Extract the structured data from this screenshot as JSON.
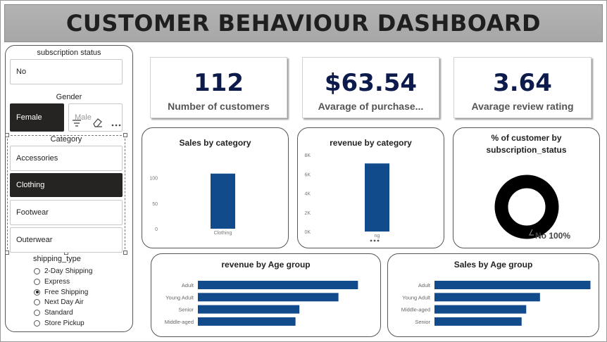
{
  "header": {
    "title": "CUSTOMER BEHAVIOUR DASHBOARD"
  },
  "slicers": {
    "subscription": {
      "title": "subscription status",
      "options": [
        "No"
      ]
    },
    "gender": {
      "title": "Gender",
      "options": [
        "Female",
        "Male"
      ],
      "selected": "Female"
    },
    "category": {
      "title": "Category",
      "options": [
        "Accessories",
        "Clothing",
        "Footwear",
        "Outerwear"
      ],
      "selected": "Clothing"
    },
    "shipping": {
      "title": "shipping_type",
      "options": [
        "2-Day Shipping",
        "Express",
        "Free Shipping",
        "Next Day Air",
        "Standard",
        "Store Pickup"
      ],
      "selected": "Free Shipping"
    }
  },
  "kpis": {
    "customers": {
      "value": "112",
      "label": "Number of customers"
    },
    "purchase": {
      "value": "$63.54",
      "label": "Avarage of purchase..."
    },
    "rating": {
      "value": "3.64",
      "label": "Avarage review rating"
    }
  },
  "colors": {
    "bar": "#124b8c",
    "donut": "#000000",
    "title_bg": "#acacac"
  },
  "icons": [
    "filter-icon",
    "eraser-icon",
    "more-options-icon"
  ],
  "chart_data": [
    {
      "id": "sales_by_category",
      "type": "bar",
      "title": "Sales by category",
      "categories": [
        "Clothing"
      ],
      "values": [
        108
      ],
      "yticks": [
        "0",
        "50",
        "100"
      ],
      "ylim": [
        0,
        120
      ]
    },
    {
      "id": "revenue_by_category",
      "type": "bar",
      "title": "revenue by category",
      "categories": [
        "Clothing"
      ],
      "category_label_visible": "ng",
      "values": [
        7100
      ],
      "yticks": [
        "0K",
        "2K",
        "4K",
        "6K",
        "8K"
      ],
      "ylim": [
        0,
        8000
      ]
    },
    {
      "id": "subscription_pie",
      "type": "pie",
      "title_lines": [
        "% of customer by",
        "subscription_status"
      ],
      "slices": [
        {
          "label": "No",
          "value": 100
        }
      ],
      "data_label": "No 100%"
    },
    {
      "id": "revenue_by_age",
      "type": "bar",
      "orientation": "horizontal",
      "title": "revenue by Age group",
      "categories": [
        "Adult",
        "Young Adult",
        "Senior",
        "Middle-aged"
      ],
      "values": [
        2050,
        1800,
        1300,
        1250
      ],
      "xlim": [
        0,
        2200
      ]
    },
    {
      "id": "sales_by_age",
      "type": "bar",
      "orientation": "horizontal",
      "title": "Sales by Age group",
      "categories": [
        "Adult",
        "Young Adult",
        "Middle-aged",
        "Senior"
      ],
      "values": [
        34,
        23,
        20,
        19
      ],
      "xlim": [
        0,
        35
      ]
    }
  ]
}
